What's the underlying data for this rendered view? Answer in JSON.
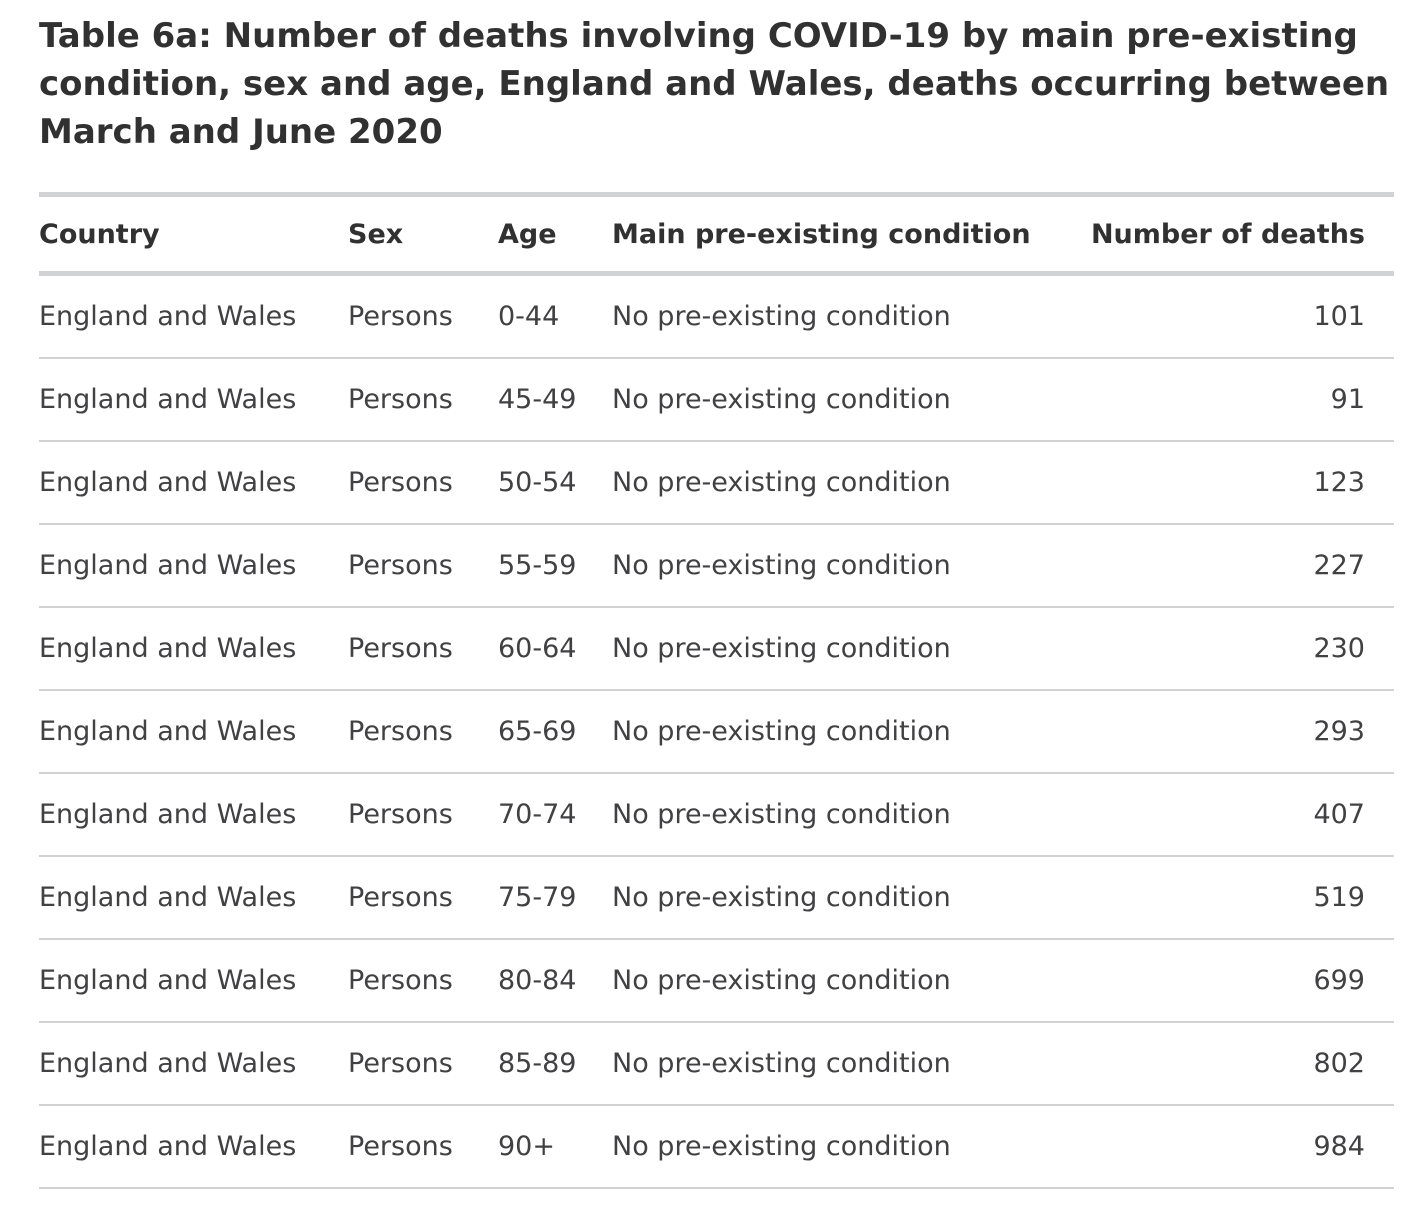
{
  "title": "Table 6a: Number of deaths involving COVID-19 by main pre-existing condition, sex and age, England and Wales, deaths occurring between March and June 2020",
  "title_lines": [
    "Table 6a: Number of deaths involving COVID-19 by main pre-existing",
    "condition, sex and age, England and Wales, deaths occurring between",
    "March and June 2020"
  ],
  "columns": [
    "Country",
    "Sex",
    "Age",
    "Main pre-existing condition",
    "Number of deaths"
  ],
  "rows": [
    {
      "country": "England and Wales",
      "sex": "Persons",
      "age": "0-44",
      "condition": "No pre-existing condition",
      "deaths": "101"
    },
    {
      "country": "England and Wales",
      "sex": "Persons",
      "age": "45-49",
      "condition": "No pre-existing condition",
      "deaths": "91"
    },
    {
      "country": "England and Wales",
      "sex": "Persons",
      "age": "50-54",
      "condition": "No pre-existing condition",
      "deaths": "123"
    },
    {
      "country": "England and Wales",
      "sex": "Persons",
      "age": "55-59",
      "condition": "No pre-existing condition",
      "deaths": "227"
    },
    {
      "country": "England and Wales",
      "sex": "Persons",
      "age": "60-64",
      "condition": "No pre-existing condition",
      "deaths": "230"
    },
    {
      "country": "England and Wales",
      "sex": "Persons",
      "age": "65-69",
      "condition": "No pre-existing condition",
      "deaths": "293"
    },
    {
      "country": "England and Wales",
      "sex": "Persons",
      "age": "70-74",
      "condition": "No pre-existing condition",
      "deaths": "407"
    },
    {
      "country": "England and Wales",
      "sex": "Persons",
      "age": "75-79",
      "condition": "No pre-existing condition",
      "deaths": "519"
    },
    {
      "country": "England and Wales",
      "sex": "Persons",
      "age": "80-84",
      "condition": "No pre-existing condition",
      "deaths": "699"
    },
    {
      "country": "England and Wales",
      "sex": "Persons",
      "age": "85-89",
      "condition": "No pre-existing condition",
      "deaths": "802"
    },
    {
      "country": "England and Wales",
      "sex": "Persons",
      "age": "90+",
      "condition": "No pre-existing condition",
      "deaths": "984"
    }
  ],
  "colors": {
    "text": "#323132",
    "rule": "#d0d2d3"
  }
}
